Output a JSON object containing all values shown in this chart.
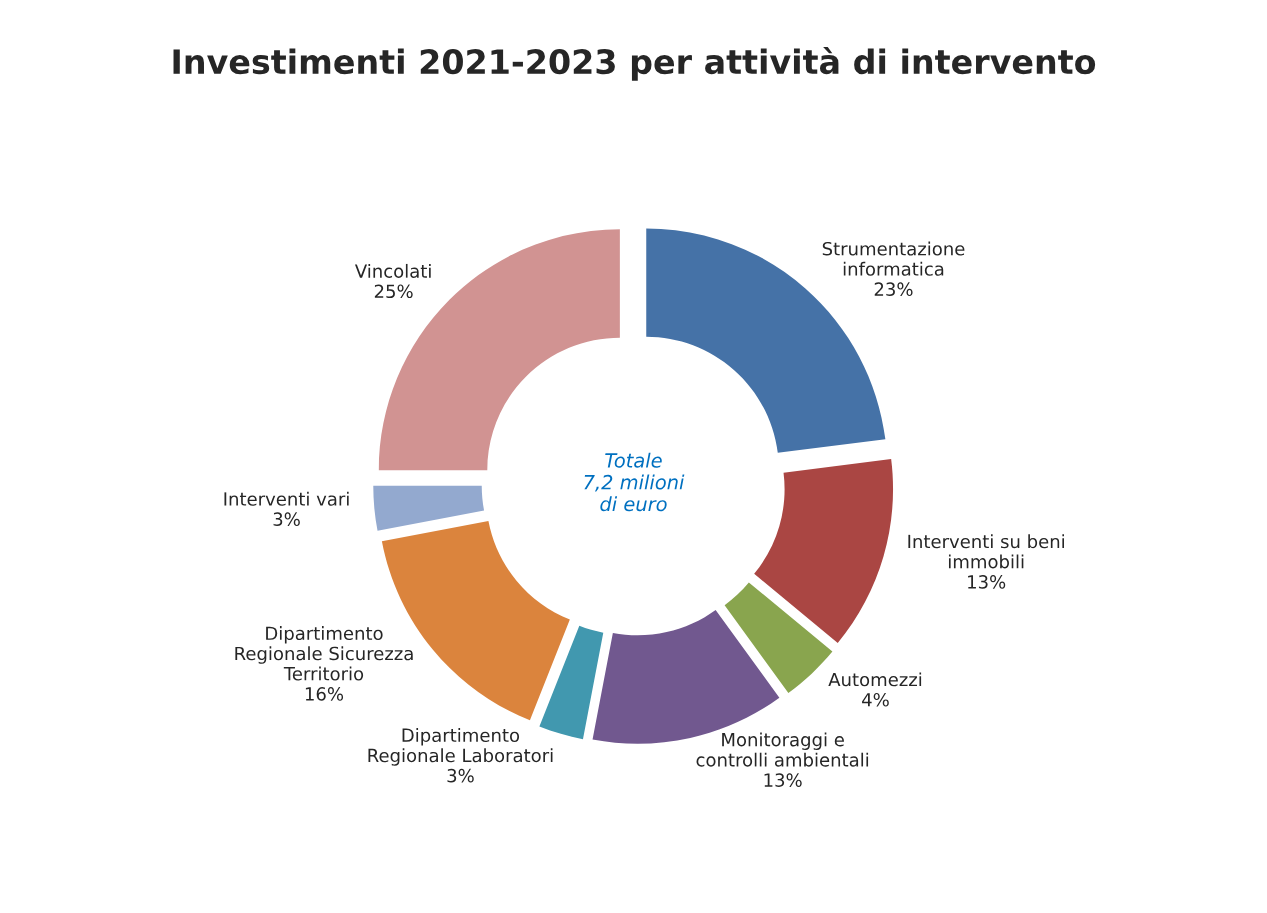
{
  "chart_data": {
    "type": "donut",
    "title": "Investimenti 2021-2023 per attività di intervento",
    "categories": [
      "Strumentazione\ninformatica",
      "Interventi su beni\nimmobili",
      "Automezzi",
      "Monitoraggi e\ncontrolli ambientali",
      "Dipartimento\nRegionale Laboratori",
      "Dipartimento\nRegionale Sicurezza\nTerritorio",
      "Interventi vari",
      "Vincolati"
    ],
    "values": [
      23,
      13,
      4,
      13,
      3,
      16,
      3,
      25
    ],
    "value_labels": [
      "23%",
      "13%",
      "4%",
      "13%",
      "3%",
      "16%",
      "3%",
      "25%"
    ],
    "colors": [
      "#4572a7",
      "#aa4643",
      "#89a54e",
      "#71588f",
      "#4198af",
      "#db843d",
      "#93a9cf",
      "#d19392"
    ],
    "annotations": [
      "Totale\n7,2 milioni\ndi euro"
    ]
  }
}
